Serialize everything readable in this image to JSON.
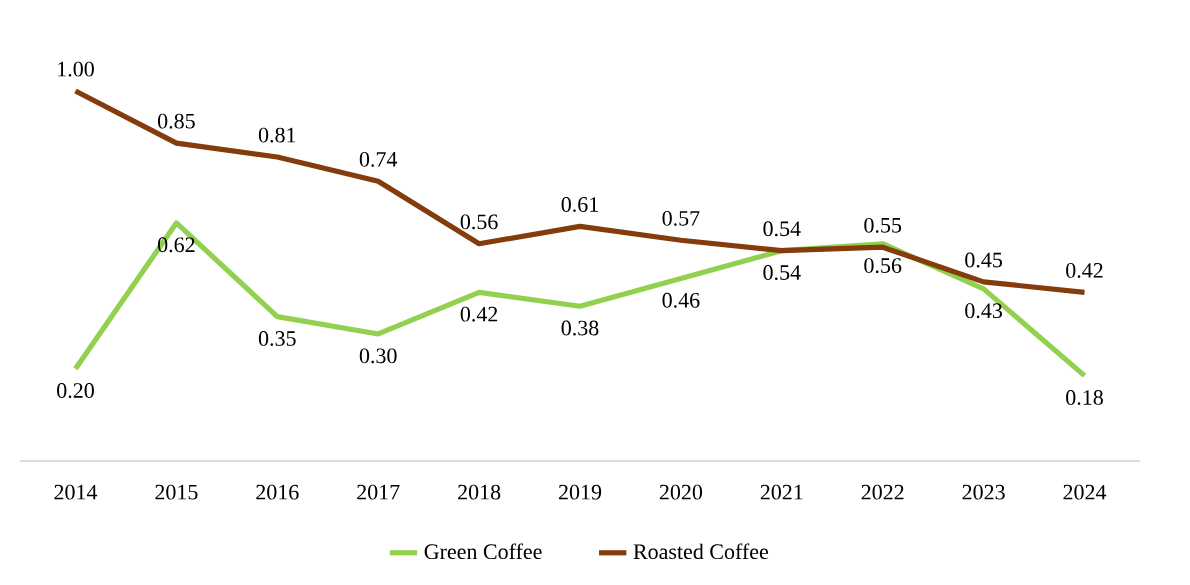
{
  "chart_data": {
    "type": "line",
    "categories": [
      "2014",
      "2015",
      "2016",
      "2017",
      "2018",
      "2019",
      "2020",
      "2021",
      "2022",
      "2023",
      "2024"
    ],
    "series": [
      {
        "name": "Green Coffee",
        "color": "#92d050",
        "values": [
          0.2,
          0.62,
          0.35,
          0.3,
          0.42,
          0.38,
          0.46,
          0.54,
          0.56,
          0.43,
          0.18
        ],
        "value_labels": [
          "0.20",
          "0.62",
          "0.35",
          "0.30",
          "0.42",
          "0.38",
          "0.46",
          "0.54",
          "0.56",
          "0.43",
          "0.18"
        ]
      },
      {
        "name": "Roasted Coffee",
        "color": "#843c0c",
        "values": [
          1.0,
          0.85,
          0.81,
          0.74,
          0.56,
          0.61,
          0.57,
          0.54,
          0.55,
          0.45,
          0.42
        ],
        "value_labels": [
          "1.00",
          "0.85",
          "0.81",
          "0.74",
          "0.56",
          "0.61",
          "0.57",
          "0.54",
          "0.55",
          "0.45",
          "0.42"
        ]
      }
    ],
    "legend": "bottom",
    "marker": "none",
    "line_style": "solid"
  }
}
